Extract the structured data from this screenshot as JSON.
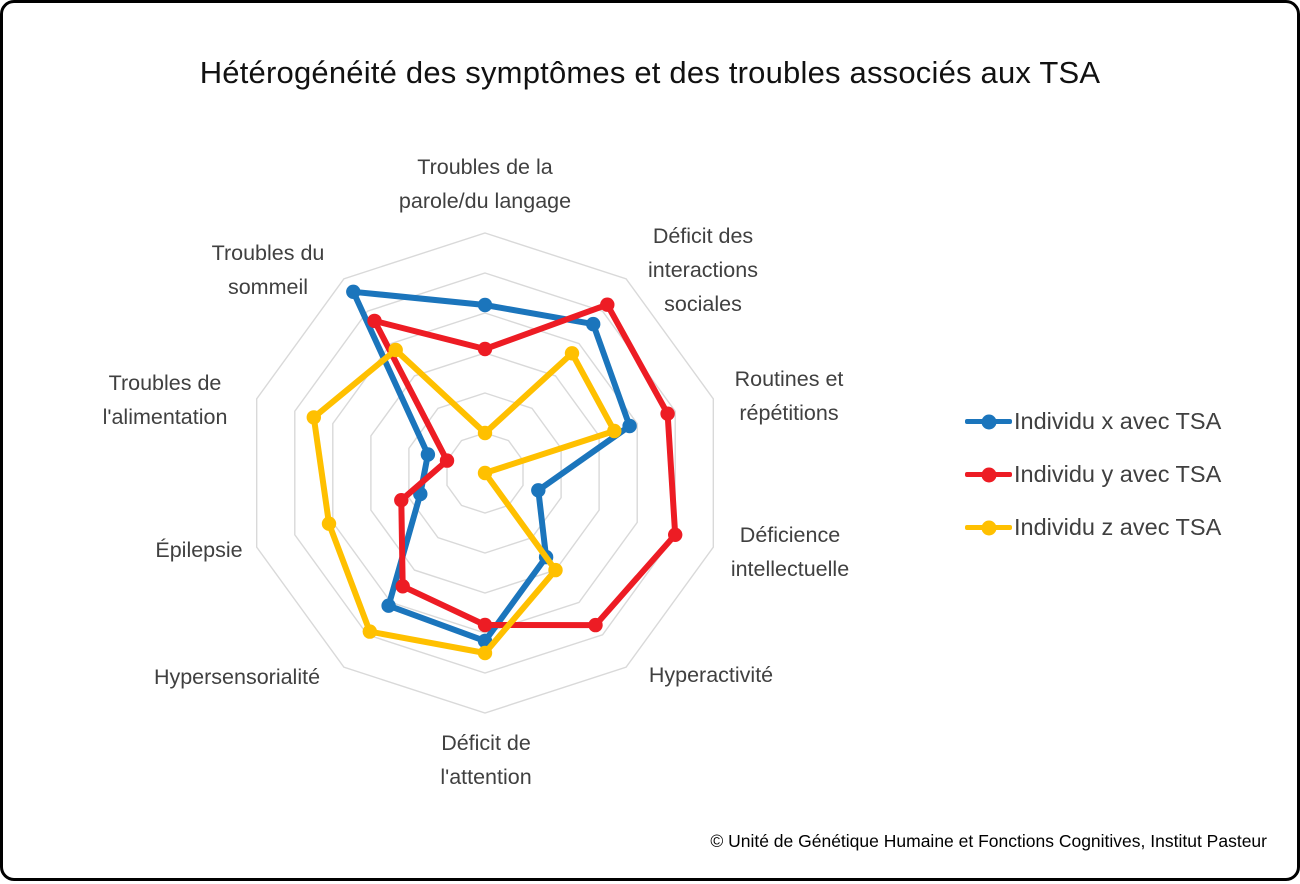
{
  "title": "Hétérogénéité des symptômes et des troubles associés aux TSA",
  "footer": "© Unité de Génétique Humaine et Fonctions Cognitives, Institut Pasteur",
  "legend": {
    "items": [
      {
        "label": "Individu x avec TSA",
        "color": "#1B75BC"
      },
      {
        "label": "Individu y avec TSA",
        "color": "#ED1C24"
      },
      {
        "label": "Individu z avec TSA",
        "color": "#FFC000"
      }
    ]
  },
  "colors": {
    "gridline": "#D9D9D9",
    "axis_label": "#404040",
    "title_text": "#111111"
  },
  "chart_data": {
    "type": "radar",
    "title": "Hétérogénéité des symptômes et des troubles associés aux TSA",
    "categories": [
      "Troubles de la parole/du langage",
      "Déficit des interactions sociales",
      "Routines et répétitions",
      "Déficience intellectuelle",
      "Hyperactivité",
      "Déficit de l'attention",
      "Hypersensorialité",
      "Épilepsie",
      "Troubles de l'alimentation",
      "Troubles du sommeil"
    ],
    "series": [
      {
        "name": "Individu x avec TSA",
        "color": "#1B75BC",
        "values": [
          4.2,
          4.6,
          3.8,
          1.4,
          2.6,
          4.2,
          4.1,
          1.7,
          1.5,
          5.6
        ]
      },
      {
        "name": "Individu y avec TSA",
        "color": "#ED1C24",
        "values": [
          3.1,
          5.2,
          4.8,
          5.0,
          4.7,
          3.8,
          3.5,
          2.2,
          1.0,
          4.7
        ]
      },
      {
        "name": "Individu z avec TSA",
        "color": "#FFC000",
        "values": [
          1.0,
          3.7,
          3.4,
          0.0,
          3.0,
          4.5,
          4.9,
          4.1,
          4.5,
          3.8
        ]
      }
    ],
    "scale": {
      "min": 0,
      "max": 6,
      "ring_interval": 1,
      "rings": 6
    },
    "grid": true,
    "radial_spokes": false,
    "start_axis": "top",
    "direction": "clockwise",
    "legend_position": "right"
  }
}
